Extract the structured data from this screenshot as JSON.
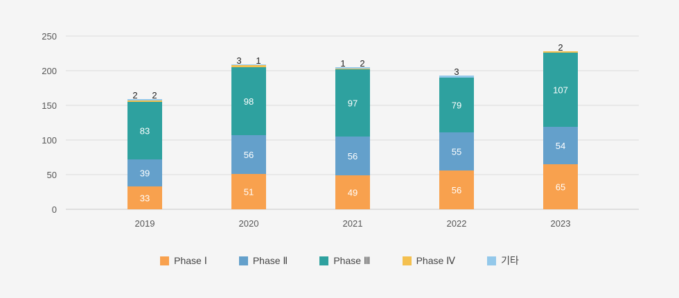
{
  "chart_data": {
    "type": "bar",
    "stacked": true,
    "categories": [
      "2019",
      "2020",
      "2021",
      "2022",
      "2023"
    ],
    "series": [
      {
        "name": "Phase Ⅰ",
        "color": "#f8a14e",
        "values": [
          33,
          51,
          49,
          56,
          65
        ]
      },
      {
        "name": "Phase Ⅱ",
        "color": "#64a0cb",
        "values": [
          39,
          56,
          56,
          55,
          54
        ]
      },
      {
        "name": "Phase Ⅲ",
        "color": "#2ea19f",
        "values": [
          83,
          98,
          97,
          79,
          107
        ]
      },
      {
        "name": "Phase Ⅳ",
        "color": "#f4c04f",
        "values": [
          2,
          3,
          1,
          0,
          2
        ]
      },
      {
        "name": "기타",
        "color": "#93c8ea",
        "values": [
          2,
          1,
          2,
          3,
          0
        ]
      }
    ],
    "top_labels": [
      {
        "category": "2019",
        "labels": [
          "2",
          "2"
        ]
      },
      {
        "category": "2020",
        "labels": [
          "3",
          "1"
        ]
      },
      {
        "category": "2021",
        "labels": [
          "1",
          "2"
        ]
      },
      {
        "category": "2022",
        "labels": [
          "3"
        ]
      },
      {
        "category": "2023",
        "labels": [
          "2"
        ]
      }
    ],
    "y_ticks": [
      "0",
      "50",
      "100",
      "150",
      "200",
      "250"
    ],
    "ylim": [
      0,
      250
    ],
    "grid": true,
    "legend_position": "bottom",
    "title": "",
    "xlabel": "",
    "ylabel": ""
  }
}
